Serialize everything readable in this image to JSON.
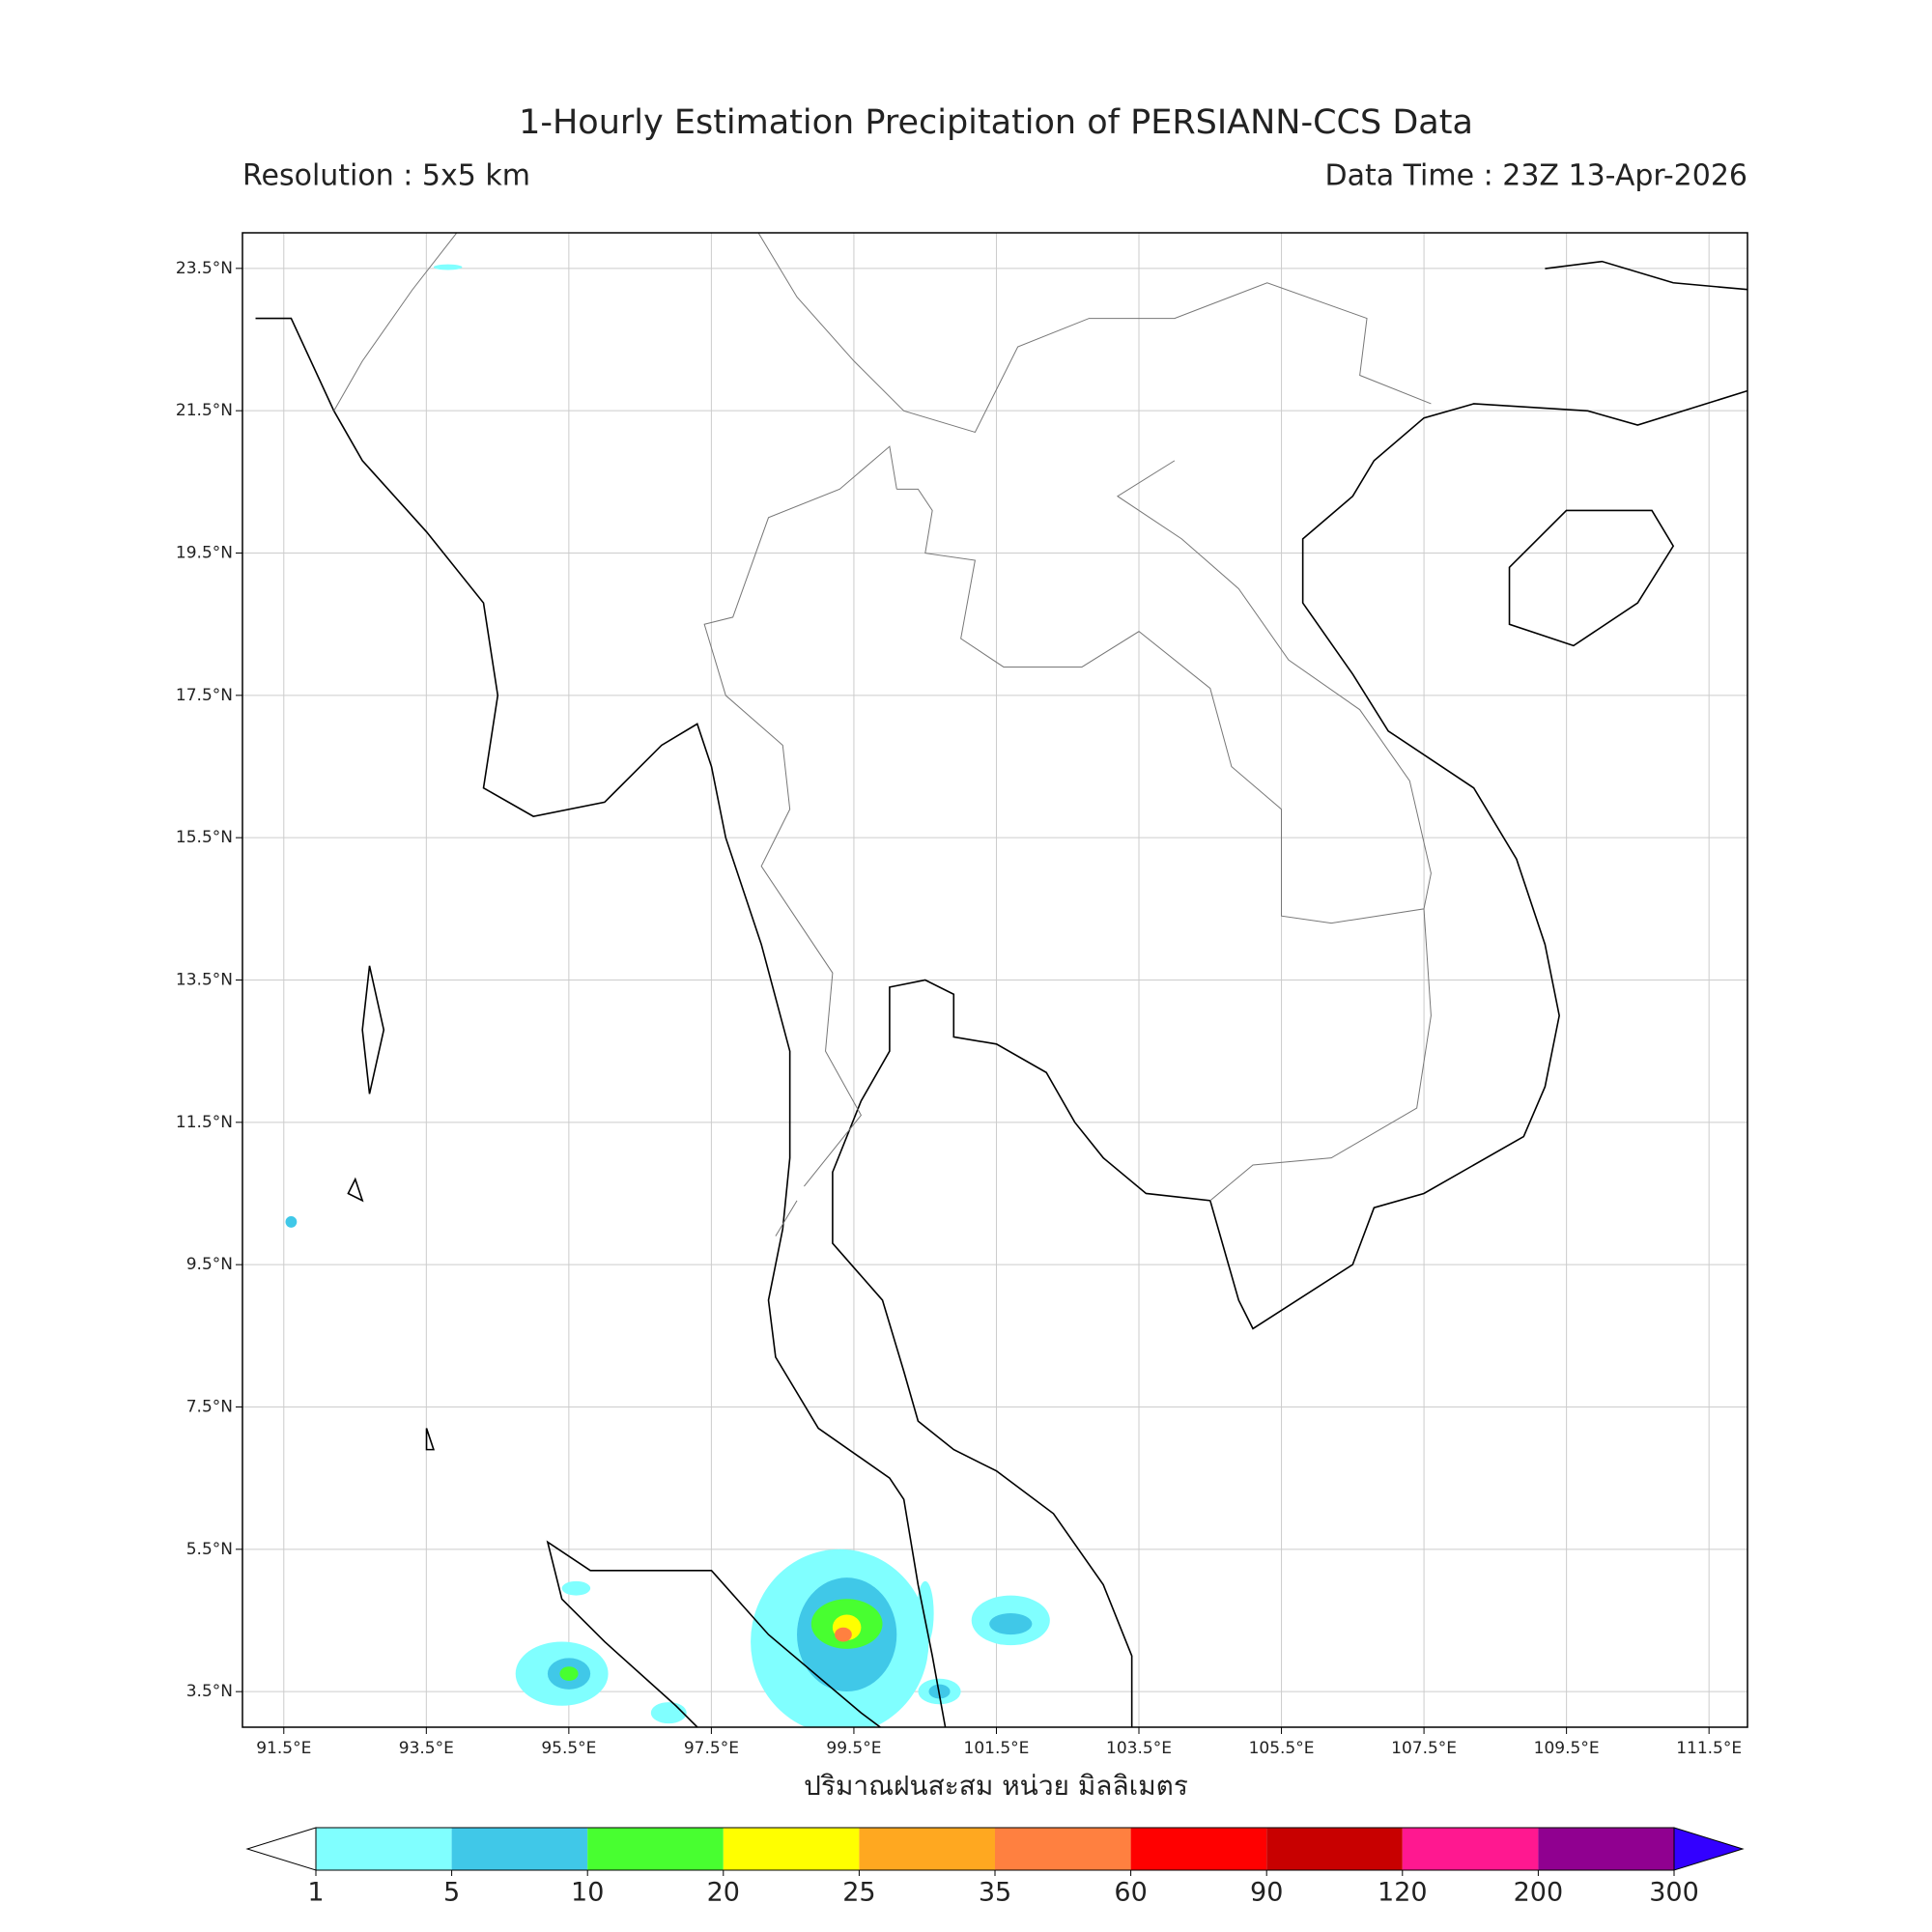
{
  "map": {
    "title": "1-Hourly Estimation Precipitation of PERSIANN-CCS Data",
    "resolution": "Resolution : 5x5 km",
    "data_time": "Data Time : 23Z 13-Apr-2026",
    "xlim": [
      90.92,
      112.04
    ],
    "ylim": [
      3.0,
      24.0
    ],
    "xticks": [
      {
        "value": 91.5,
        "label": "91.5°E"
      },
      {
        "value": 93.5,
        "label": "93.5°E"
      },
      {
        "value": 95.5,
        "label": "95.5°E"
      },
      {
        "value": 97.5,
        "label": "97.5°E"
      },
      {
        "value": 99.5,
        "label": "99.5°E"
      },
      {
        "value": 101.5,
        "label": "101.5°E"
      },
      {
        "value": 103.5,
        "label": "103.5°E"
      },
      {
        "value": 105.5,
        "label": "105.5°E"
      },
      {
        "value": 107.5,
        "label": "107.5°E"
      },
      {
        "value": 109.5,
        "label": "109.5°E"
      },
      {
        "value": 111.5,
        "label": "111.5°E"
      }
    ],
    "yticks": [
      {
        "value": 23.5,
        "label": "23.5°N"
      },
      {
        "value": 21.5,
        "label": "21.5°N"
      },
      {
        "value": 19.5,
        "label": "19.5°N"
      },
      {
        "value": 17.5,
        "label": "17.5°N"
      },
      {
        "value": 15.5,
        "label": "15.5°N"
      },
      {
        "value": 13.5,
        "label": "13.5°N"
      },
      {
        "value": 11.5,
        "label": "11.5°N"
      },
      {
        "value": 9.5,
        "label": "9.5°N"
      },
      {
        "value": 7.5,
        "label": "7.5°N"
      },
      {
        "value": 5.5,
        "label": "5.5°N"
      },
      {
        "value": 3.5,
        "label": "3.5°N"
      }
    ],
    "grid": true,
    "xlabel": "ปริมาณฝนสะสม หน่วย มิลลิเมตร",
    "colorbar": {
      "levels": [
        1,
        5,
        10,
        20,
        25,
        35,
        60,
        90,
        120,
        200,
        300
      ],
      "colors": [
        "#80ffff",
        "#40c8e8",
        "#48ff30",
        "#ffff00",
        "#ffa820",
        "#ff8040",
        "#ff0000",
        "#c80000",
        "#ff1890",
        "#900090"
      ],
      "under_color": "#ffffff",
      "over_color": "#3300ff"
    }
  }
}
